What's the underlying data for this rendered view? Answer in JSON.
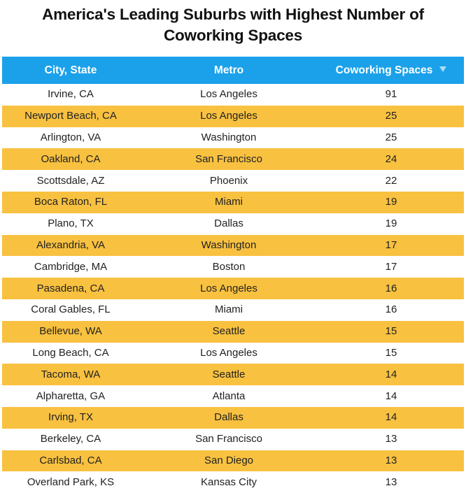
{
  "title_line1": "America's Leading Suburbs with Highest Number of",
  "title_line2": "Coworking Spaces",
  "colors": {
    "header": "#1ba1ea",
    "stripe": "#f8c140",
    "row": "#ffffff"
  },
  "chart_data": {
    "type": "table",
    "title": "America's Leading Suburbs with Highest Number of Coworking Spaces",
    "columns": [
      "City, State",
      "Metro",
      "Coworking Spaces"
    ],
    "sort_column": "Coworking Spaces",
    "sort_direction": "descending",
    "rows": [
      {
        "city": "Irvine, CA",
        "metro": "Los Angeles",
        "spaces": "91"
      },
      {
        "city": "Newport Beach, CA",
        "metro": "Los Angeles",
        "spaces": "25"
      },
      {
        "city": "Arlington, VA",
        "metro": "Washington",
        "spaces": "25"
      },
      {
        "city": "Oakland, CA",
        "metro": "San Francisco",
        "spaces": "24"
      },
      {
        "city": "Scottsdale, AZ",
        "metro": "Phoenix",
        "spaces": "22"
      },
      {
        "city": "Boca Raton, FL",
        "metro": "Miami",
        "spaces": "19"
      },
      {
        "city": "Plano, TX",
        "metro": "Dallas",
        "spaces": "19"
      },
      {
        "city": "Alexandria, VA",
        "metro": "Washington",
        "spaces": "17"
      },
      {
        "city": "Cambridge, MA",
        "metro": "Boston",
        "spaces": "17"
      },
      {
        "city": "Pasadena, CA",
        "metro": "Los Angeles",
        "spaces": "16"
      },
      {
        "city": "Coral Gables, FL",
        "metro": "Miami",
        "spaces": "16"
      },
      {
        "city": "Bellevue, WA",
        "metro": "Seattle",
        "spaces": "15"
      },
      {
        "city": "Long Beach, CA",
        "metro": "Los Angeles",
        "spaces": "15"
      },
      {
        "city": "Tacoma, WA",
        "metro": "Seattle",
        "spaces": "14"
      },
      {
        "city": "Alpharetta, GA",
        "metro": "Atlanta",
        "spaces": "14"
      },
      {
        "city": "Irving, TX",
        "metro": "Dallas",
        "spaces": "14"
      },
      {
        "city": "Berkeley, CA",
        "metro": "San Francisco",
        "spaces": "13"
      },
      {
        "city": "Carlsbad, CA",
        "metro": "San Diego",
        "spaces": "13"
      },
      {
        "city": "Overland Park, KS",
        "metro": "Kansas City",
        "spaces": "13"
      }
    ]
  }
}
